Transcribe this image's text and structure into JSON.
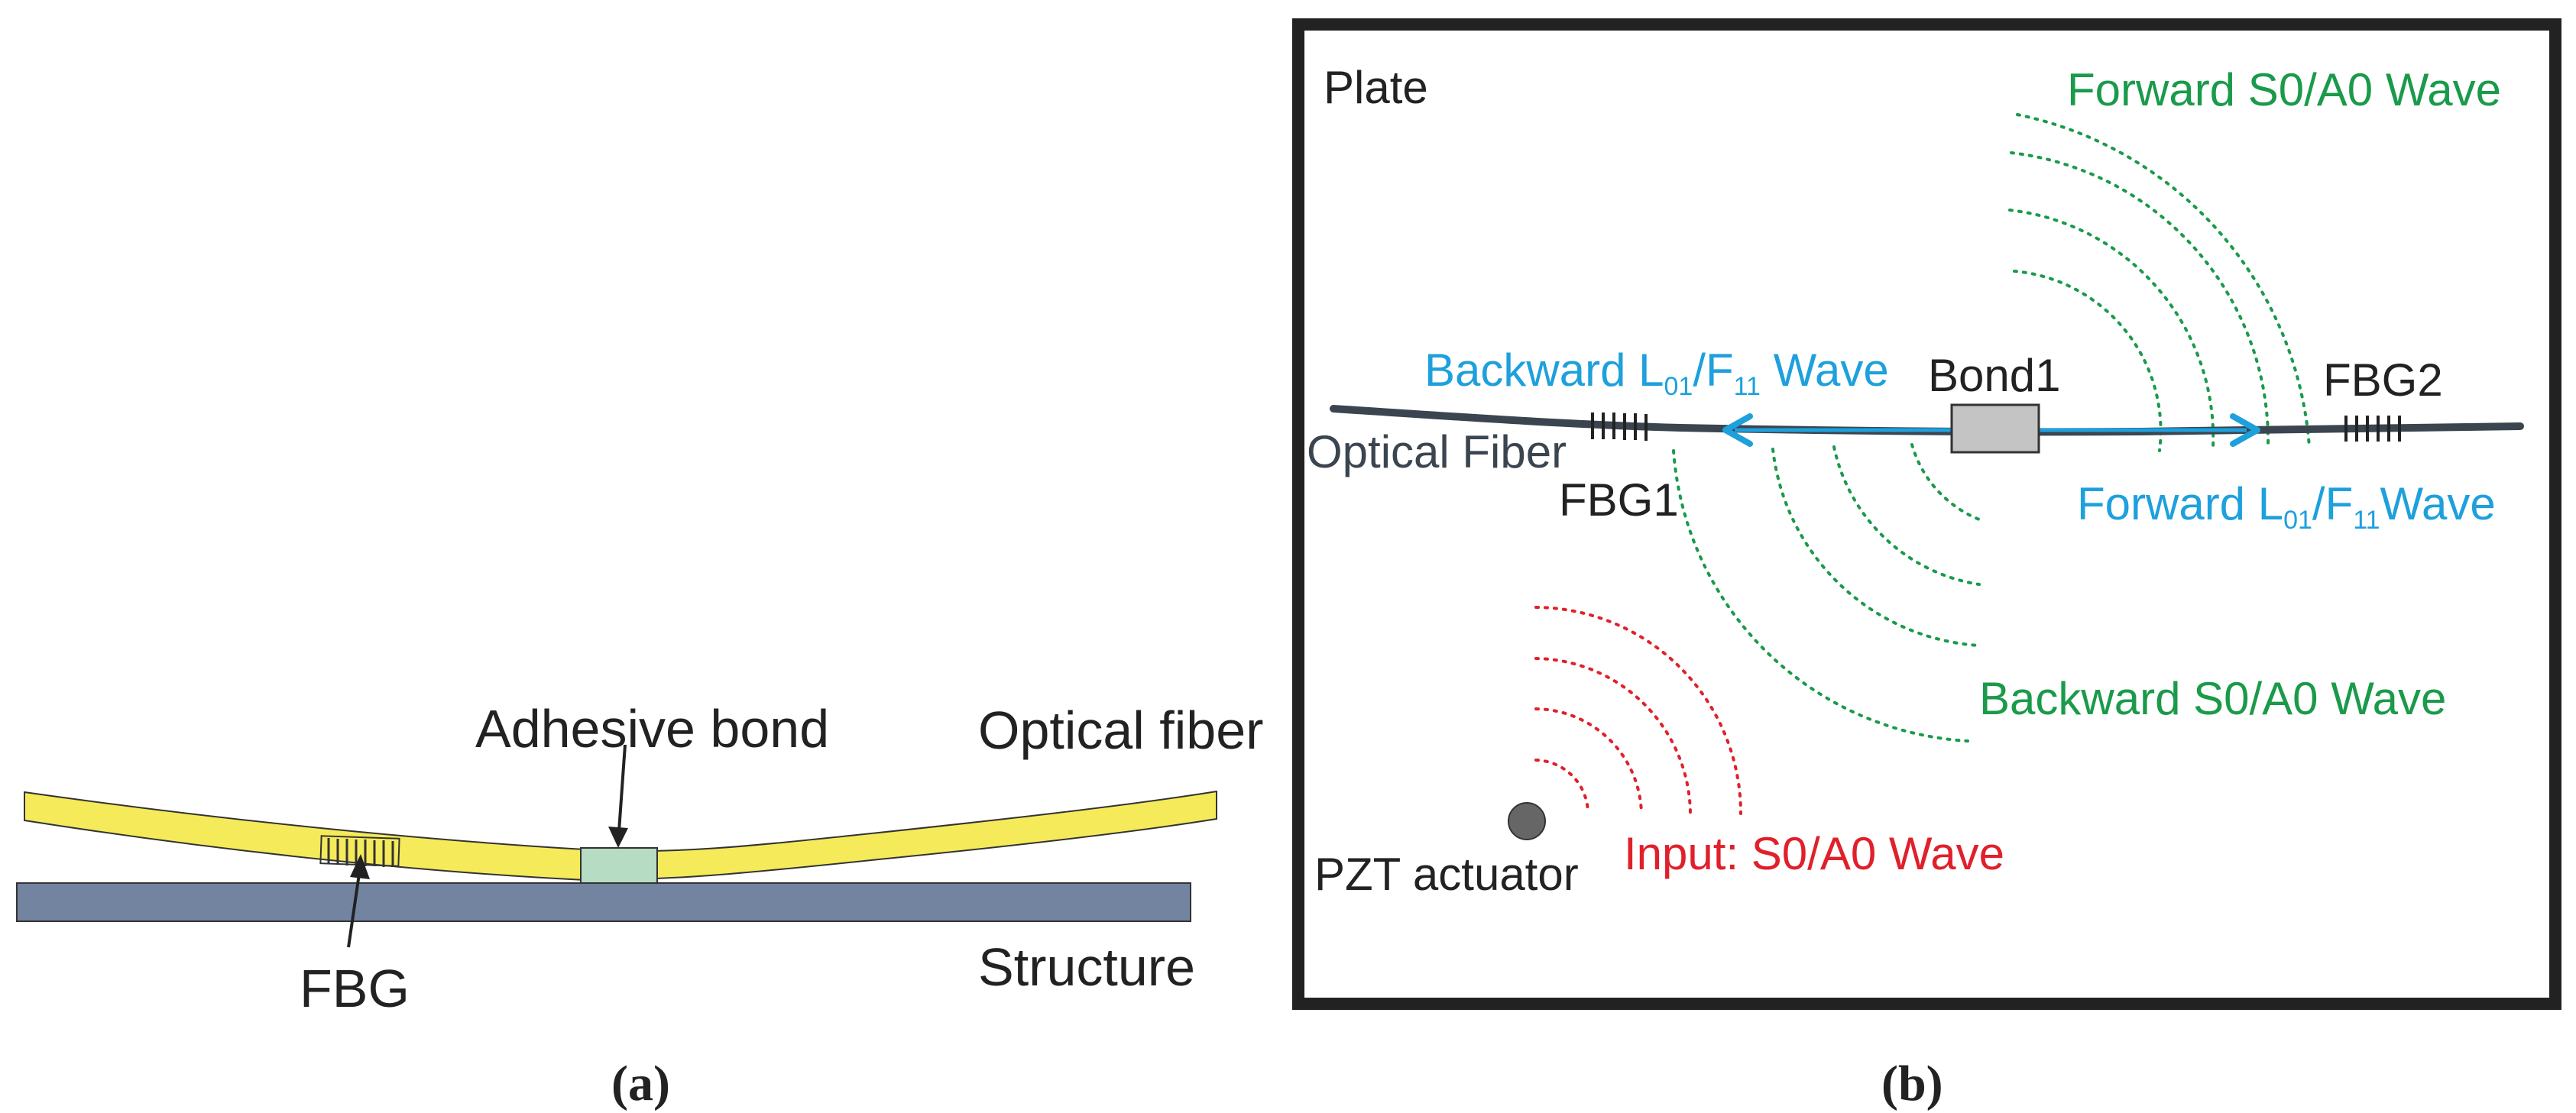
{
  "panel_a": {
    "labels": {
      "adhesive_bond": "Adhesive bond",
      "optical_fiber": "Optical fiber",
      "fbg": "FBG",
      "structure": "Structure"
    },
    "caption": "(a)",
    "colors": {
      "fiber": "#f5ea5a",
      "fiber_outline": "#333333",
      "bond": "#b6dcc4",
      "structure": "#7384a1"
    }
  },
  "panel_b": {
    "labels": {
      "plate": "Plate",
      "forward_s0a0": "Forward S0/A0 Wave",
      "backward_prefix": "Backward L",
      "backward_sub1": "01",
      "backward_mid": "/F",
      "backward_sub2": "11",
      "backward_suffix": " Wave",
      "bond1": "Bond1",
      "fbg2": "FBG2",
      "optical_fiber": "Optical Fiber",
      "fbg1": "FBG1",
      "forward_prefix": "Forward L",
      "forward_sub1": "01",
      "forward_mid": "/F",
      "forward_sub2": "11",
      "forward_suffix": "Wave",
      "backward_s0a0": "Backward S0/A0 Wave",
      "pzt": "PZT actuator",
      "input": "Input: S0/A0 Wave"
    },
    "caption": "(b)",
    "colors": {
      "green": "#1a9a4a",
      "blue": "#1ea0dc",
      "red": "#e0202a",
      "frame": "#222222",
      "fiber": "#3a4550",
      "bond": "#c4c4c4",
      "pzt": "#666666"
    }
  }
}
